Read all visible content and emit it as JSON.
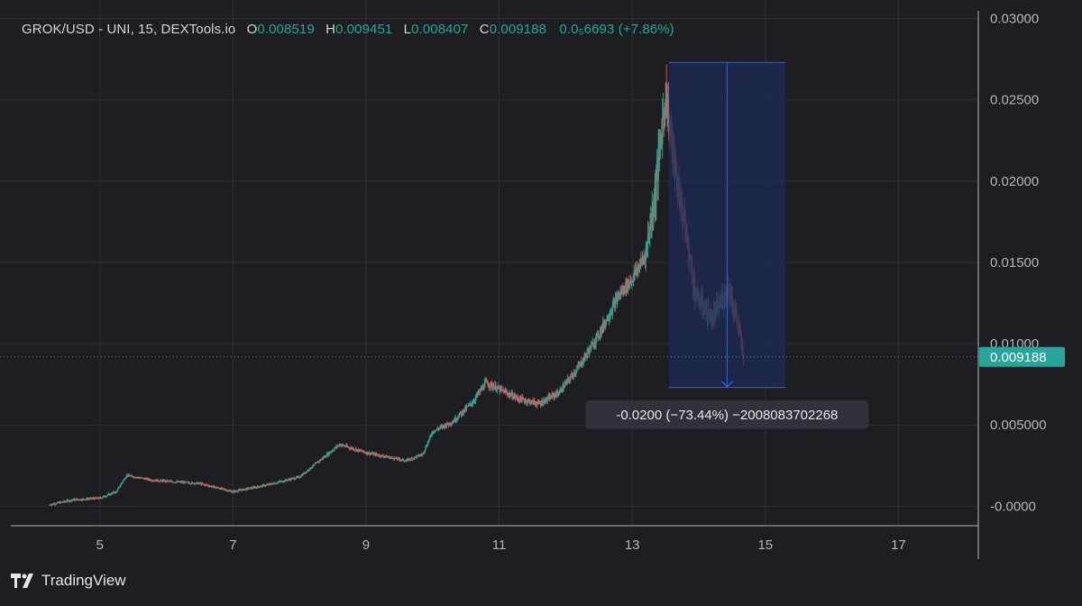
{
  "header": {
    "symbol": "GROK/USD - UNI, 15, DEXTools.io",
    "open_label": "O",
    "open": "0.008519",
    "high_label": "H",
    "high": "0.009451",
    "low_label": "L",
    "low": "0.008407",
    "close_label": "C",
    "close": "0.009188",
    "change": "0.0₅6693 (+7.86%)"
  },
  "footer": {
    "brand": "TradingView"
  },
  "colors": {
    "background": "#1d1d22",
    "grid": "#2c2f38",
    "up": "#26a69a",
    "down": "#ef5350",
    "measure_fill": "#1c2a55",
    "measure_line": "#2962ff"
  },
  "chart_data": {
    "type": "candlestick",
    "title": "GROK/USD - UNI, 15, DEXTools.io",
    "x_ticks": [
      "5",
      "7",
      "9",
      "11",
      "13",
      "15",
      "17"
    ],
    "x_tick_values": [
      5,
      7,
      9,
      11,
      13,
      15,
      17
    ],
    "xlim": [
      3.5,
      18.2
    ],
    "y_ticks": [
      "0.03000",
      "0.02500",
      "0.02000",
      "0.01500",
      "0.01000",
      "0.005000",
      "-0.0000"
    ],
    "y_tick_values": [
      0.03,
      0.025,
      0.02,
      0.015,
      0.01,
      0.005,
      0
    ],
    "ylim": [
      -0.0012,
      0.0307
    ],
    "last_price": 0.009188,
    "last_price_label": "0.009188",
    "price_path": [
      [
        4.25,
        0.0001
      ],
      [
        4.6,
        0.0004
      ],
      [
        5.0,
        0.0005
      ],
      [
        5.25,
        0.0009
      ],
      [
        5.4,
        0.0019
      ],
      [
        5.8,
        0.0016
      ],
      [
        6.5,
        0.0014
      ],
      [
        7.0,
        0.0009
      ],
      [
        7.5,
        0.0013
      ],
      [
        8.0,
        0.0018
      ],
      [
        8.3,
        0.0028
      ],
      [
        8.6,
        0.0038
      ],
      [
        9.0,
        0.0033
      ],
      [
        9.6,
        0.0028
      ],
      [
        9.85,
        0.0032
      ],
      [
        10.0,
        0.0046
      ],
      [
        10.3,
        0.0052
      ],
      [
        10.6,
        0.0064
      ],
      [
        10.8,
        0.0076
      ],
      [
        11.0,
        0.0072
      ],
      [
        11.3,
        0.0066
      ],
      [
        11.6,
        0.0063
      ],
      [
        11.9,
        0.007
      ],
      [
        12.2,
        0.0086
      ],
      [
        12.5,
        0.0106
      ],
      [
        12.8,
        0.013
      ],
      [
        13.0,
        0.014
      ],
      [
        13.2,
        0.0155
      ],
      [
        13.35,
        0.0195
      ],
      [
        13.5,
        0.0255
      ],
      [
        13.65,
        0.0205
      ],
      [
        13.8,
        0.017
      ],
      [
        13.95,
        0.013
      ],
      [
        14.2,
        0.0115
      ],
      [
        14.45,
        0.0135
      ],
      [
        14.6,
        0.011
      ],
      [
        14.68,
        0.0088
      ]
    ],
    "measure": {
      "x_start": 13.55,
      "x_end": 15.3,
      "y_top": 0.0273,
      "y_bottom": 0.0073,
      "label": "-0.0200 (−73.44%) −2008083702268"
    }
  }
}
